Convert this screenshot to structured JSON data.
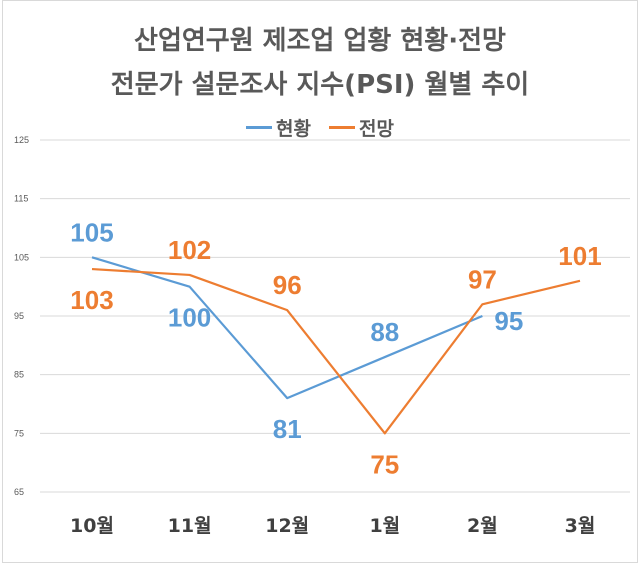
{
  "chart_data": {
    "type": "line",
    "title": [
      "산업연구원 제조업 업황 현황·전망",
      "전문가 설문조사 지수(PSI) 월별 추이"
    ],
    "xlabel": "",
    "ylabel": "",
    "categories": [
      "10월",
      "11월",
      "12월",
      "1월",
      "2월",
      "3월"
    ],
    "ylim": [
      65,
      125
    ],
    "yticks": [
      "125",
      "115",
      "105",
      "95",
      "85",
      "75",
      "65"
    ],
    "grid": true,
    "legend_placement": "top-center",
    "series": [
      {
        "name": "현황",
        "color": "#5b9bd5",
        "values": [
          105,
          100,
          81,
          88,
          95,
          null
        ],
        "labels": [
          "105",
          "100",
          "81",
          "88",
          "95",
          null
        ],
        "label_pos": [
          "above",
          "below",
          "below",
          "above",
          "right",
          null
        ]
      },
      {
        "name": "전망",
        "color": "#ed7d31",
        "values": [
          103,
          102,
          96,
          75,
          97,
          101
        ],
        "labels": [
          "103",
          "102",
          "96",
          "75",
          "97",
          "101"
        ],
        "label_pos": [
          "below",
          "above",
          "above",
          "below",
          "above",
          "above"
        ]
      }
    ]
  }
}
